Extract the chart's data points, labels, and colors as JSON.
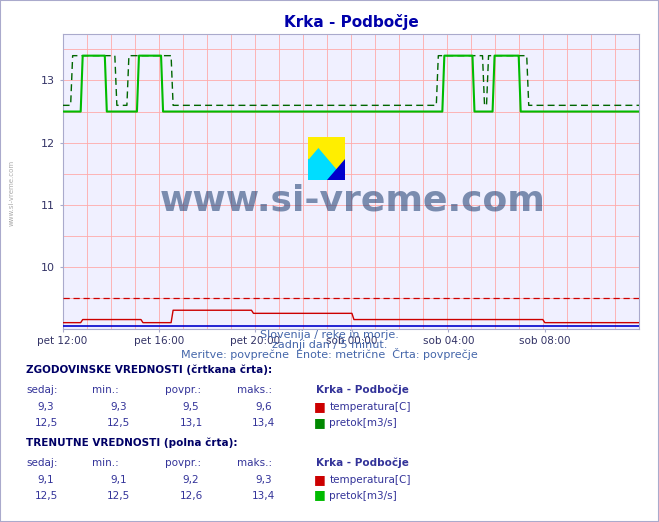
{
  "title": "Krka - Podbočje",
  "subtitle1": "Slovenija / reke in morje.",
  "subtitle2": "zadnji dan / 5 minut.",
  "subtitle3": "Meritve: povprečne  Enote: metrične  Črta: povprečje",
  "xlabel_ticks": [
    "pet 12:00",
    "pet 16:00",
    "pet 20:00",
    "sob 00:00",
    "sob 04:00",
    "sob 08:00"
  ],
  "tick_positions": [
    0,
    48,
    96,
    144,
    192,
    240
  ],
  "xlim": [
    0,
    287
  ],
  "ylim": [
    9.0,
    13.75
  ],
  "yticks": [
    10,
    11,
    12,
    13
  ],
  "bg_color": "#ffffff",
  "plot_bg_color": "#f0f0ff",
  "grid_color": "#ffaaaa",
  "temp_hist_color": "#cc0000",
  "flow_hist_color": "#006600",
  "temp_curr_color": "#cc0000",
  "flow_curr_color": "#00bb00",
  "blue_line_color": "#0000cc",
  "watermark_color": "#1a3a6e",
  "table_header_color": "#000066",
  "table_data_color": "#333399",
  "hist_values": {
    "sedaj_temp": "9,3",
    "min_temp": "9,3",
    "povpr_temp": "9,5",
    "maks_temp": "9,6",
    "sedaj_flow": "12,5",
    "min_flow": "12,5",
    "povpr_flow": "13,1",
    "maks_flow": "13,4"
  },
  "curr_values": {
    "sedaj_temp": "9,1",
    "min_temp": "9,1",
    "povpr_temp": "9,2",
    "maks_temp": "9,3",
    "sedaj_flow": "12,5",
    "min_flow": "12,5",
    "povpr_flow": "12,6",
    "maks_flow": "13,4"
  },
  "n_points": 288
}
